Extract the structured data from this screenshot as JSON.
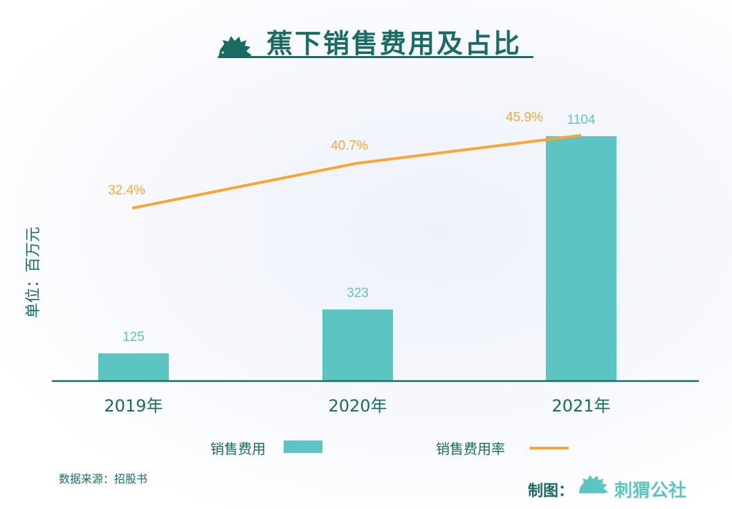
{
  "header": {
    "title": "蕉下销售费用及占比"
  },
  "unit_label": "单位：百万元",
  "legend": {
    "bar": "销售费用",
    "line": "销售费用率"
  },
  "footer": {
    "source": "数据来源：招股书",
    "credit": "制图：",
    "brand": "刺猬公社"
  },
  "colors": {
    "bar": "#5cc4c2",
    "line": "#f5a73a",
    "text": "#1a6b64"
  },
  "chart_data": {
    "type": "bar+line",
    "title": "蕉下销售费用及占比",
    "categories": [
      "2019年",
      "2020年",
      "2021年"
    ],
    "series": [
      {
        "name": "销售费用",
        "type": "bar",
        "values": [
          125,
          323,
          1104
        ],
        "labels": [
          "125",
          "323",
          "1104"
        ]
      },
      {
        "name": "销售费用率",
        "type": "line",
        "values": [
          32.4,
          40.7,
          45.9
        ],
        "labels": [
          "32.4%",
          "40.7%",
          "45.9%"
        ]
      }
    ],
    "ylabel": "单位：百万元",
    "ylim": [
      0,
      1104
    ],
    "legend": "bottom"
  }
}
